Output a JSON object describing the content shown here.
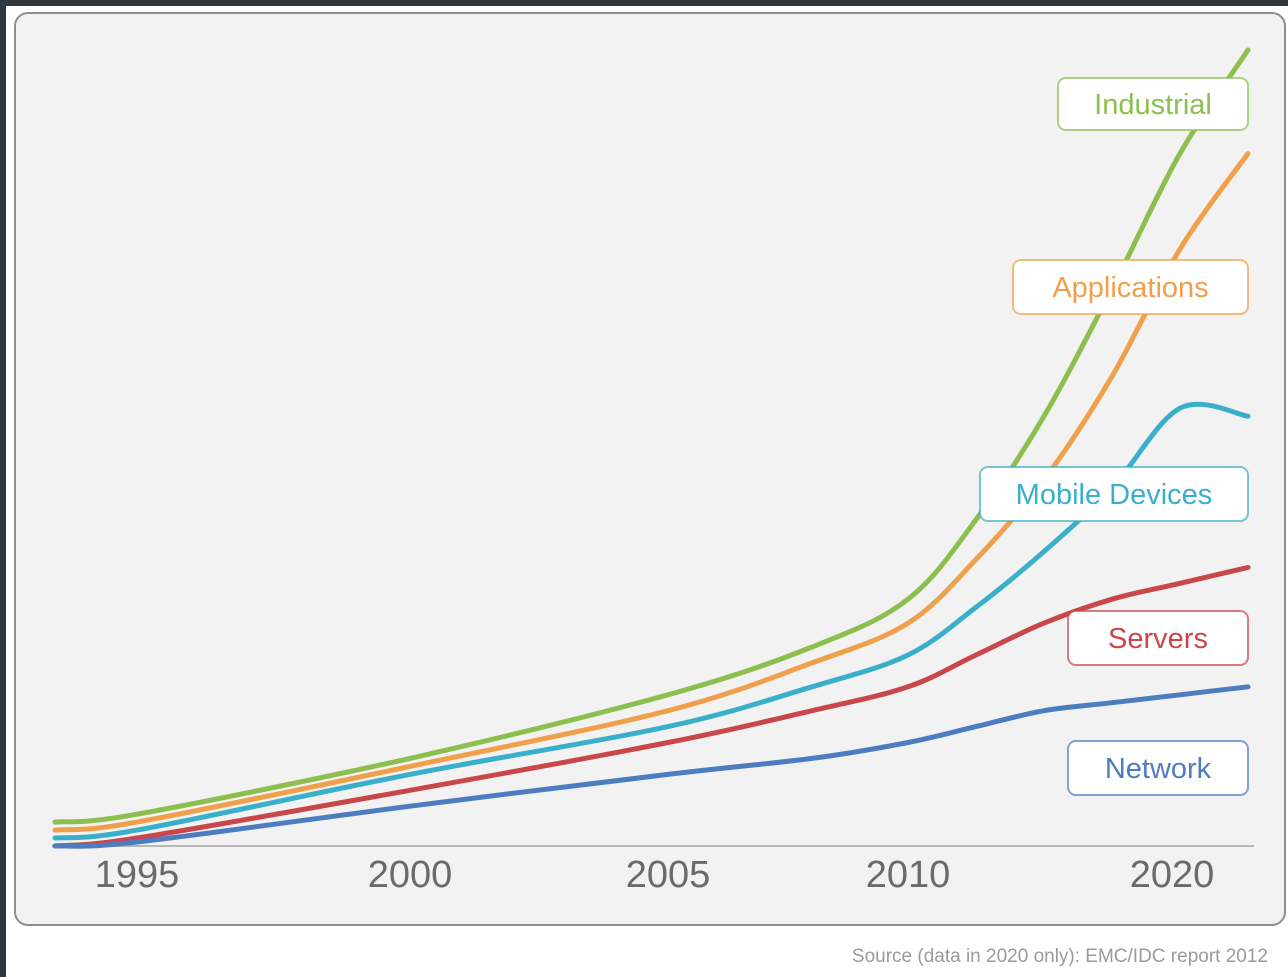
{
  "chart_data": {
    "type": "line",
    "x": [
      1994,
      1995,
      2000,
      2005,
      2008,
      2010,
      2012,
      2014,
      2016,
      2018,
      2020
    ],
    "x_ticks": [
      "1995",
      "2000",
      "2005",
      "2010",
      "2020"
    ],
    "ylim": [
      0,
      100
    ],
    "grid": false,
    "series": [
      {
        "name": "Industrial",
        "color": "#8cbf4e",
        "values": [
          3,
          4,
          11,
          19,
          25,
          31,
          41,
          54,
          70,
          87,
          100
        ]
      },
      {
        "name": "Applications",
        "color": "#f0a04b",
        "values": [
          2,
          3,
          10,
          17,
          23,
          28,
          36,
          46,
          59,
          75,
          87
        ]
      },
      {
        "name": "Mobile Devices",
        "color": "#3aafc9",
        "values": [
          1,
          2,
          9,
          15,
          20,
          24,
          30,
          37,
          45,
          55,
          54
        ]
      },
      {
        "name": "Servers",
        "color": "#c9474a",
        "values": [
          0,
          1,
          7,
          13,
          17,
          20,
          24,
          28,
          31,
          33,
          35
        ]
      },
      {
        "name": "Network",
        "color": "#4d7cc1",
        "values": [
          0,
          0.5,
          5,
          9,
          11,
          13,
          15,
          17,
          18,
          19,
          20
        ]
      }
    ]
  },
  "source": "Source (data in 2020 only): EMC/IDC report 2012"
}
